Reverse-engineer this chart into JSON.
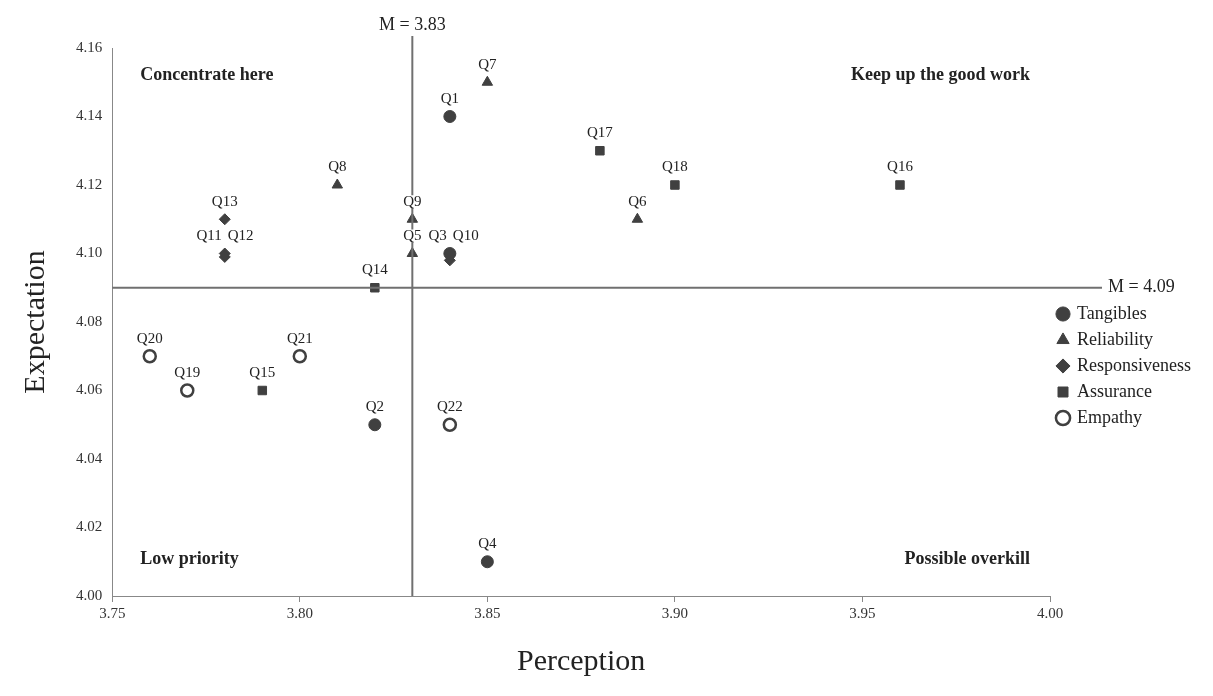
{
  "chart_data": {
    "type": "scatter",
    "xlabel": "Perception",
    "ylabel": "Expectation",
    "xlim": [
      3.75,
      4.0
    ],
    "ylim": [
      4.0,
      4.16
    ],
    "xticks": [
      {
        "value": 3.75,
        "label": "3.75"
      },
      {
        "value": 3.8,
        "label": "3.80"
      },
      {
        "value": 3.85,
        "label": "3.85"
      },
      {
        "value": 3.9,
        "label": "3.90"
      },
      {
        "value": 3.95,
        "label": "3.95"
      },
      {
        "value": 4.0,
        "label": "4.00"
      }
    ],
    "yticks": [
      {
        "value": 4.0,
        "label": "4.00"
      },
      {
        "value": 4.02,
        "label": "4.02"
      },
      {
        "value": 4.04,
        "label": "4.04"
      },
      {
        "value": 4.06,
        "label": "4.06"
      },
      {
        "value": 4.08,
        "label": "4.08"
      },
      {
        "value": 4.1,
        "label": "4.10"
      },
      {
        "value": 4.12,
        "label": "4.12"
      },
      {
        "value": 4.14,
        "label": "4.14"
      },
      {
        "value": 4.16,
        "label": "4.16"
      }
    ],
    "grid": false,
    "legend": "right",
    "series": [
      {
        "name": "Tangibles",
        "color": "#404040",
        "marker": "circle",
        "x": [
          3.84,
          3.82,
          3.84,
          3.85
        ],
        "values": [
          4.14,
          4.05,
          4.1,
          4.01
        ]
      },
      {
        "name": "Reliability",
        "color": "#404040",
        "marker": "triangle",
        "x": [
          3.83,
          3.89,
          3.85,
          3.81,
          3.83
        ],
        "values": [
          4.1,
          4.11,
          4.15,
          4.12,
          4.11
        ]
      },
      {
        "name": "Responsiveness",
        "color": "#404040",
        "marker": "diamond",
        "x": [
          3.84,
          3.78,
          3.78,
          3.78
        ],
        "values": [
          4.098,
          4.1,
          4.099,
          4.11
        ]
      },
      {
        "name": "Assurance",
        "color": "#404040",
        "marker": "square",
        "x": [
          3.82,
          3.79,
          3.96,
          3.88,
          3.9
        ],
        "values": [
          4.09,
          4.06,
          4.12,
          4.13,
          4.12
        ]
      },
      {
        "name": "Empathy",
        "color": "#ffffff",
        "marker": "circle",
        "x": [
          3.77,
          3.76,
          3.8,
          3.84
        ],
        "values": [
          4.06,
          4.07,
          4.07,
          4.05
        ]
      }
    ],
    "ref_lines": [
      {
        "axis": "x",
        "value": 3.83,
        "label": "M = 3.83",
        "color": "#707070"
      },
      {
        "axis": "y",
        "value": 4.09,
        "label": "M = 4.09",
        "color": "#707070"
      }
    ],
    "annotations": [
      "Concentrate here",
      "Keep up the good work",
      "Low priority",
      "Possible overkill",
      {
        "text": "Q1",
        "x": 3.84,
        "y": 4.14
      },
      {
        "text": "Q2",
        "x": 3.82,
        "y": 4.05
      },
      {
        "text": "Q3",
        "x": 3.84,
        "y": 4.1
      },
      {
        "text": "Q4",
        "x": 3.85,
        "y": 4.01
      },
      {
        "text": "Q5",
        "x": 3.83,
        "y": 4.1
      },
      {
        "text": "Q6",
        "x": 3.89,
        "y": 4.11
      },
      {
        "text": "Q7",
        "x": 3.85,
        "y": 4.15
      },
      {
        "text": "Q8",
        "x": 3.81,
        "y": 4.12
      },
      {
        "text": "Q9",
        "x": 3.83,
        "y": 4.11
      },
      {
        "text": "Q10",
        "x": 3.84,
        "y": 4.098
      },
      {
        "text": "Q11",
        "x": 3.78,
        "y": 4.1
      },
      {
        "text": "Q12",
        "x": 3.78,
        "y": 4.099
      },
      {
        "text": "Q13",
        "x": 3.78,
        "y": 4.11
      },
      {
        "text": "Q14",
        "x": 3.82,
        "y": 4.09
      },
      {
        "text": "Q15",
        "x": 3.79,
        "y": 4.06
      },
      {
        "text": "Q16",
        "x": 3.96,
        "y": 4.12
      },
      {
        "text": "Q17",
        "x": 3.88,
        "y": 4.13
      },
      {
        "text": "Q18",
        "x": 3.9,
        "y": 4.12
      },
      {
        "text": "Q19",
        "x": 3.77,
        "y": 4.06
      },
      {
        "text": "Q20",
        "x": 3.76,
        "y": 4.07
      },
      {
        "text": "Q21",
        "x": 3.8,
        "y": 4.07
      },
      {
        "text": "Q22",
        "x": 3.84,
        "y": 4.05
      }
    ]
  }
}
